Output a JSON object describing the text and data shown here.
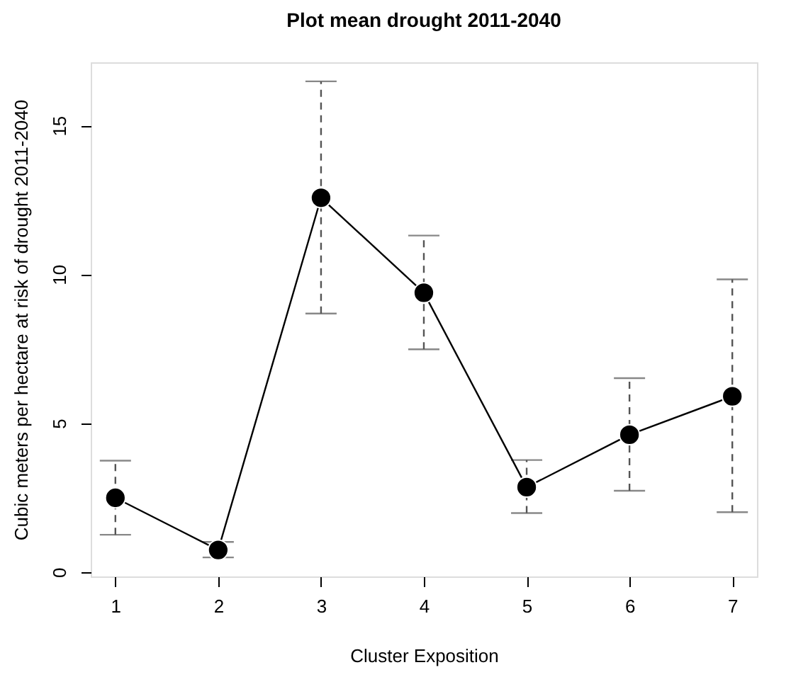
{
  "chart_data": {
    "type": "line",
    "title": "Plot mean drought 2011-2040",
    "xlabel": "Cluster Exposition",
    "ylabel": "Cubic meters per hectare at risk of drought 2011-2040",
    "x": [
      1,
      2,
      3,
      4,
      5,
      6,
      7
    ],
    "values": [
      2.49,
      0.74,
      12.57,
      9.38,
      2.85,
      4.61,
      5.9
    ],
    "errors": [
      [
        1.25,
        3.74
      ],
      [
        0.49,
        1.01
      ],
      [
        8.68,
        16.48
      ],
      [
        7.48,
        11.3
      ],
      [
        1.98,
        3.76
      ],
      [
        2.73,
        6.51
      ],
      [
        2.01,
        9.83
      ]
    ],
    "color": "#000000",
    "marker": "circle",
    "line_style": "solid",
    "grid": false,
    "xlim": [
      0.76,
      7.24
    ],
    "ylim": [
      -0.15,
      17.12
    ],
    "xticks": [
      1,
      2,
      3,
      4,
      5,
      6,
      7
    ],
    "yticks": [
      0,
      5,
      10,
      15
    ]
  }
}
